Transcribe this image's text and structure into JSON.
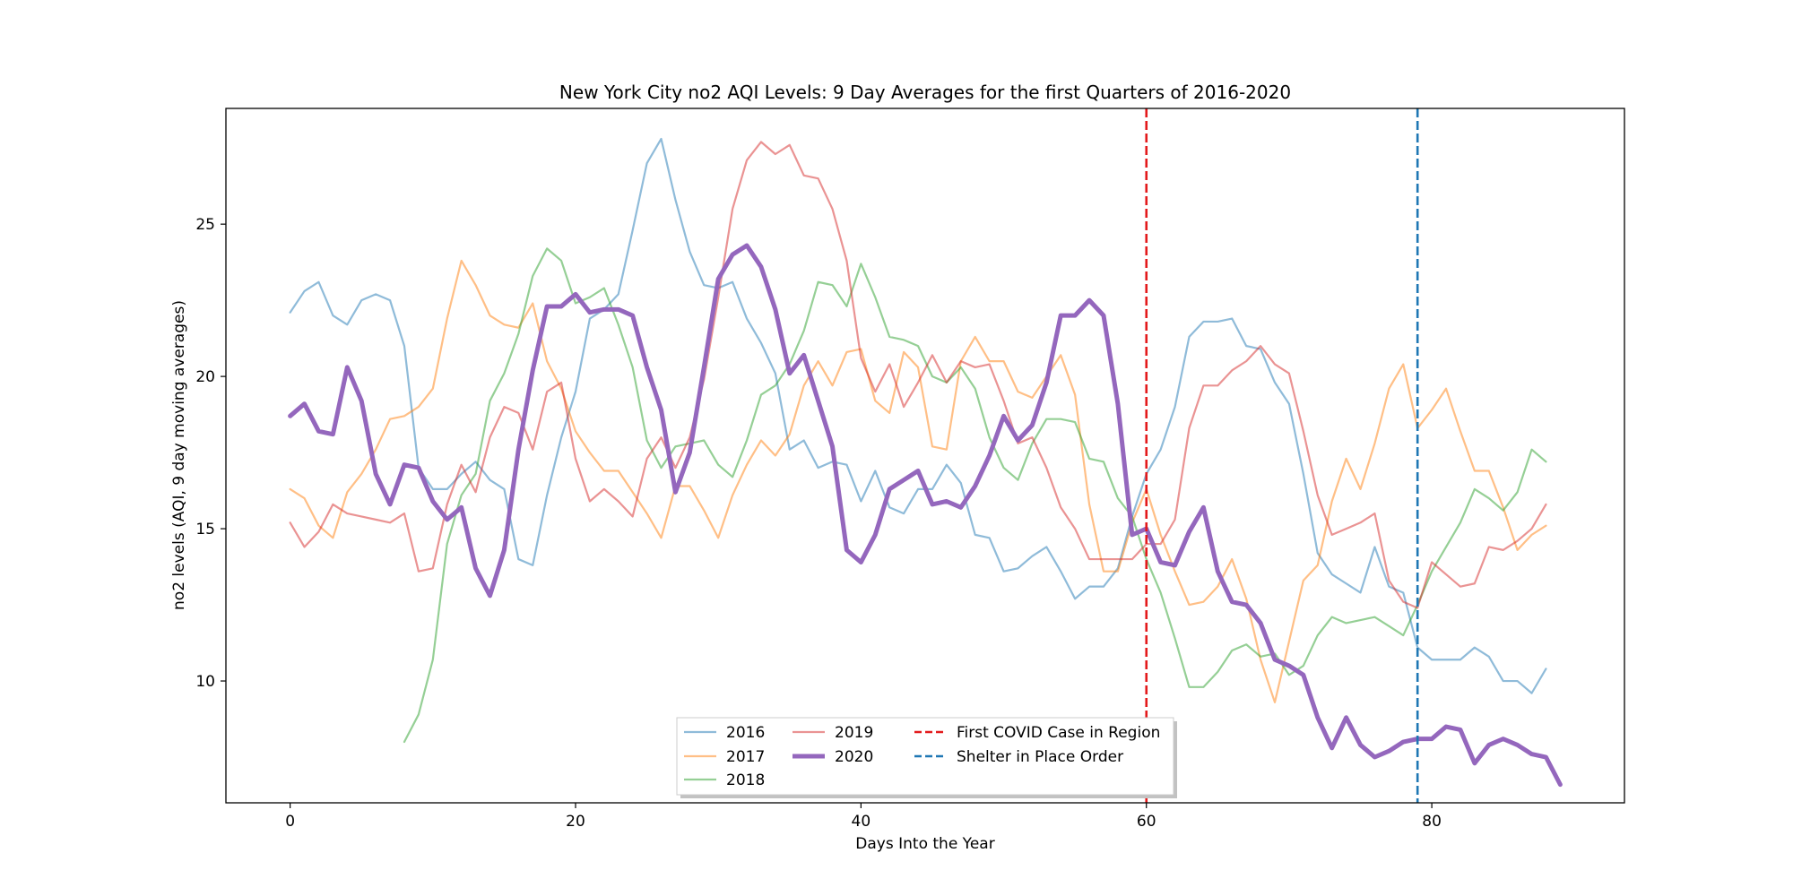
{
  "chart_data": {
    "type": "line",
    "title": "New York City no2 AQI Levels: 9 Day Averages for the first Quarters of 2016-2020",
    "xlabel": "Days Into the Year",
    "ylabel": "no2 levels (AQI, 9 day moving averages)",
    "xlim": [
      -4.5,
      93.5
    ],
    "ylim": [
      6.0,
      28.8
    ],
    "xticks": [
      0,
      20,
      40,
      60,
      80
    ],
    "yticks": [
      10,
      15,
      20,
      25
    ],
    "grid": false,
    "legend_position": "lower center",
    "series": [
      {
        "name": "2016",
        "color": "#1f77b4",
        "alpha": 0.5,
        "width": 2.2,
        "x_start": 0,
        "values": [
          22.1,
          22.8,
          23.1,
          22.0,
          21.7,
          22.5,
          22.7,
          22.5,
          21.0,
          17.0,
          16.3,
          16.3,
          16.8,
          17.2,
          16.6,
          16.3,
          14.0,
          13.8,
          16.1,
          18.0,
          19.5,
          21.9,
          22.2,
          22.7,
          24.8,
          27.0,
          27.8,
          25.8,
          24.1,
          23.0,
          22.9,
          23.1,
          21.9,
          21.1,
          20.1,
          17.6,
          17.9,
          17.0,
          17.2,
          17.1,
          15.9,
          16.9,
          15.7,
          15.5,
          16.3,
          16.3,
          17.1,
          16.5,
          14.8,
          14.7,
          13.6,
          13.7,
          14.1,
          14.4,
          13.6,
          12.7,
          13.1,
          13.1,
          13.7,
          15.4,
          16.8,
          17.6,
          19.0,
          21.3,
          21.8,
          21.8,
          21.9,
          21.0,
          20.9,
          19.8,
          19.1,
          16.8,
          14.2,
          13.5,
          13.2,
          12.9,
          14.4,
          13.1,
          12.9,
          11.1,
          10.7,
          10.7,
          10.7,
          11.1,
          10.8,
          10.0,
          10.0,
          9.6,
          10.4
        ]
      },
      {
        "name": "2017",
        "color": "#ff7f0e",
        "alpha": 0.5,
        "width": 2.2,
        "x_start": 0,
        "values": [
          16.3,
          16.0,
          15.1,
          14.7,
          16.2,
          16.8,
          17.6,
          18.6,
          18.7,
          19.0,
          19.6,
          21.9,
          23.8,
          23.0,
          22.0,
          21.7,
          21.6,
          22.4,
          20.5,
          19.6,
          18.2,
          17.5,
          16.9,
          16.9,
          16.2,
          15.5,
          14.7,
          16.4,
          16.4,
          15.6,
          14.7,
          16.1,
          17.1,
          17.9,
          17.4,
          18.1,
          19.7,
          20.5,
          19.7,
          20.8,
          20.9,
          19.2,
          18.8,
          20.8,
          20.3,
          17.7,
          17.6,
          20.5,
          21.3,
          20.5,
          20.5,
          19.5,
          19.3,
          20.0,
          20.7,
          19.4,
          15.8,
          13.6,
          13.6,
          15.2,
          16.3,
          14.8,
          13.6,
          12.5,
          12.6,
          13.1,
          14.0,
          12.7,
          10.7,
          9.3,
          11.3,
          13.3,
          13.8,
          15.9,
          17.3,
          16.3,
          17.8,
          19.6,
          20.4,
          18.3,
          18.9,
          19.6,
          18.2,
          16.9,
          16.9,
          15.7,
          14.3,
          14.8,
          15.1
        ]
      },
      {
        "name": "2018",
        "color": "#2ca02c",
        "alpha": 0.5,
        "width": 2.2,
        "x_start": 8,
        "values": [
          8.0,
          8.9,
          10.7,
          14.5,
          16.1,
          16.8,
          19.2,
          20.1,
          21.4,
          23.3,
          24.2,
          23.8,
          22.4,
          22.6,
          22.9,
          21.7,
          20.3,
          17.9,
          17.0,
          17.7,
          17.8,
          17.9,
          17.1,
          16.7,
          17.9,
          19.4,
          19.7,
          20.4,
          21.5,
          23.1,
          23.0,
          22.3,
          23.7,
          22.6,
          21.3,
          21.2,
          21.0,
          20.0,
          19.8,
          20.3,
          19.6,
          18.0,
          17.0,
          16.6,
          17.8,
          18.6,
          18.6,
          18.5,
          17.3,
          17.2,
          16.0,
          15.4,
          14.0,
          12.9,
          11.4,
          9.8,
          9.8,
          10.3,
          11.0,
          11.2,
          10.8,
          10.9,
          10.2,
          10.5,
          11.5,
          12.1,
          11.9,
          12.0,
          12.1,
          11.8,
          11.5,
          12.5,
          13.6,
          14.4,
          15.2,
          16.3,
          16.0,
          15.6,
          16.2,
          17.6,
          17.2
        ]
      },
      {
        "name": "2019",
        "color": "#d62728",
        "alpha": 0.5,
        "width": 2.2,
        "x_start": 0,
        "values": [
          15.2,
          14.4,
          14.9,
          15.8,
          15.5,
          15.4,
          15.3,
          15.2,
          15.5,
          13.6,
          13.7,
          15.8,
          17.1,
          16.2,
          18.0,
          19.0,
          18.8,
          17.6,
          19.5,
          19.8,
          17.3,
          15.9,
          16.3,
          15.9,
          15.4,
          17.3,
          18.0,
          17.0,
          18.0,
          19.9,
          22.6,
          25.5,
          27.1,
          27.7,
          27.3,
          27.6,
          26.6,
          26.5,
          25.5,
          23.8,
          20.6,
          19.5,
          20.4,
          19.0,
          19.8,
          20.7,
          19.8,
          20.5,
          20.3,
          20.4,
          19.2,
          17.8,
          18.0,
          17.0,
          15.7,
          15.0,
          14.0,
          14.0,
          14.0,
          14.0,
          14.5,
          14.5,
          15.3,
          18.3,
          19.7,
          19.7,
          20.2,
          20.5,
          21.0,
          20.4,
          20.1,
          18.2,
          16.1,
          14.8,
          15.0,
          15.2,
          15.5,
          13.3,
          12.6,
          12.4,
          13.9,
          13.5,
          13.1,
          13.2,
          14.4,
          14.3,
          14.6,
          15.0,
          15.8
        ]
      },
      {
        "name": "2020",
        "color": "#9467bd",
        "alpha": 1.0,
        "width": 5,
        "x_start": 0,
        "values": [
          18.7,
          19.1,
          18.2,
          18.1,
          20.3,
          19.2,
          16.8,
          15.8,
          17.1,
          17.0,
          15.9,
          15.3,
          15.7,
          13.7,
          12.8,
          14.3,
          17.6,
          20.2,
          22.3,
          22.3,
          22.7,
          22.1,
          22.2,
          22.2,
          22.0,
          20.3,
          18.9,
          16.2,
          17.5,
          20.3,
          23.2,
          24.0,
          24.3,
          23.6,
          22.2,
          20.1,
          20.7,
          19.2,
          17.7,
          14.3,
          13.9,
          14.8,
          16.3,
          16.6,
          16.9,
          15.8,
          15.9,
          15.7,
          16.4,
          17.4,
          18.7,
          17.9,
          18.4,
          19.8,
          22.0,
          22.0,
          22.5,
          22.0,
          19.1,
          14.8,
          15.0,
          13.9,
          13.8,
          14.9,
          15.7,
          13.6,
          12.6,
          12.5,
          11.9,
          10.7,
          10.5,
          10.2,
          8.8,
          7.8,
          8.8,
          7.9,
          7.5,
          7.7,
          8.0,
          8.1,
          8.1,
          8.5,
          8.4,
          7.3,
          7.9,
          8.1,
          7.9,
          7.6,
          7.5,
          6.6
        ]
      }
    ],
    "vlines": [
      {
        "name": "First COVID Case in Region",
        "x": 60,
        "color": "#e31a1c",
        "style": "dashed"
      },
      {
        "name": "Shelter in Place Order",
        "x": 79,
        "color": "#1f77b4",
        "style": "dashed"
      }
    ]
  }
}
